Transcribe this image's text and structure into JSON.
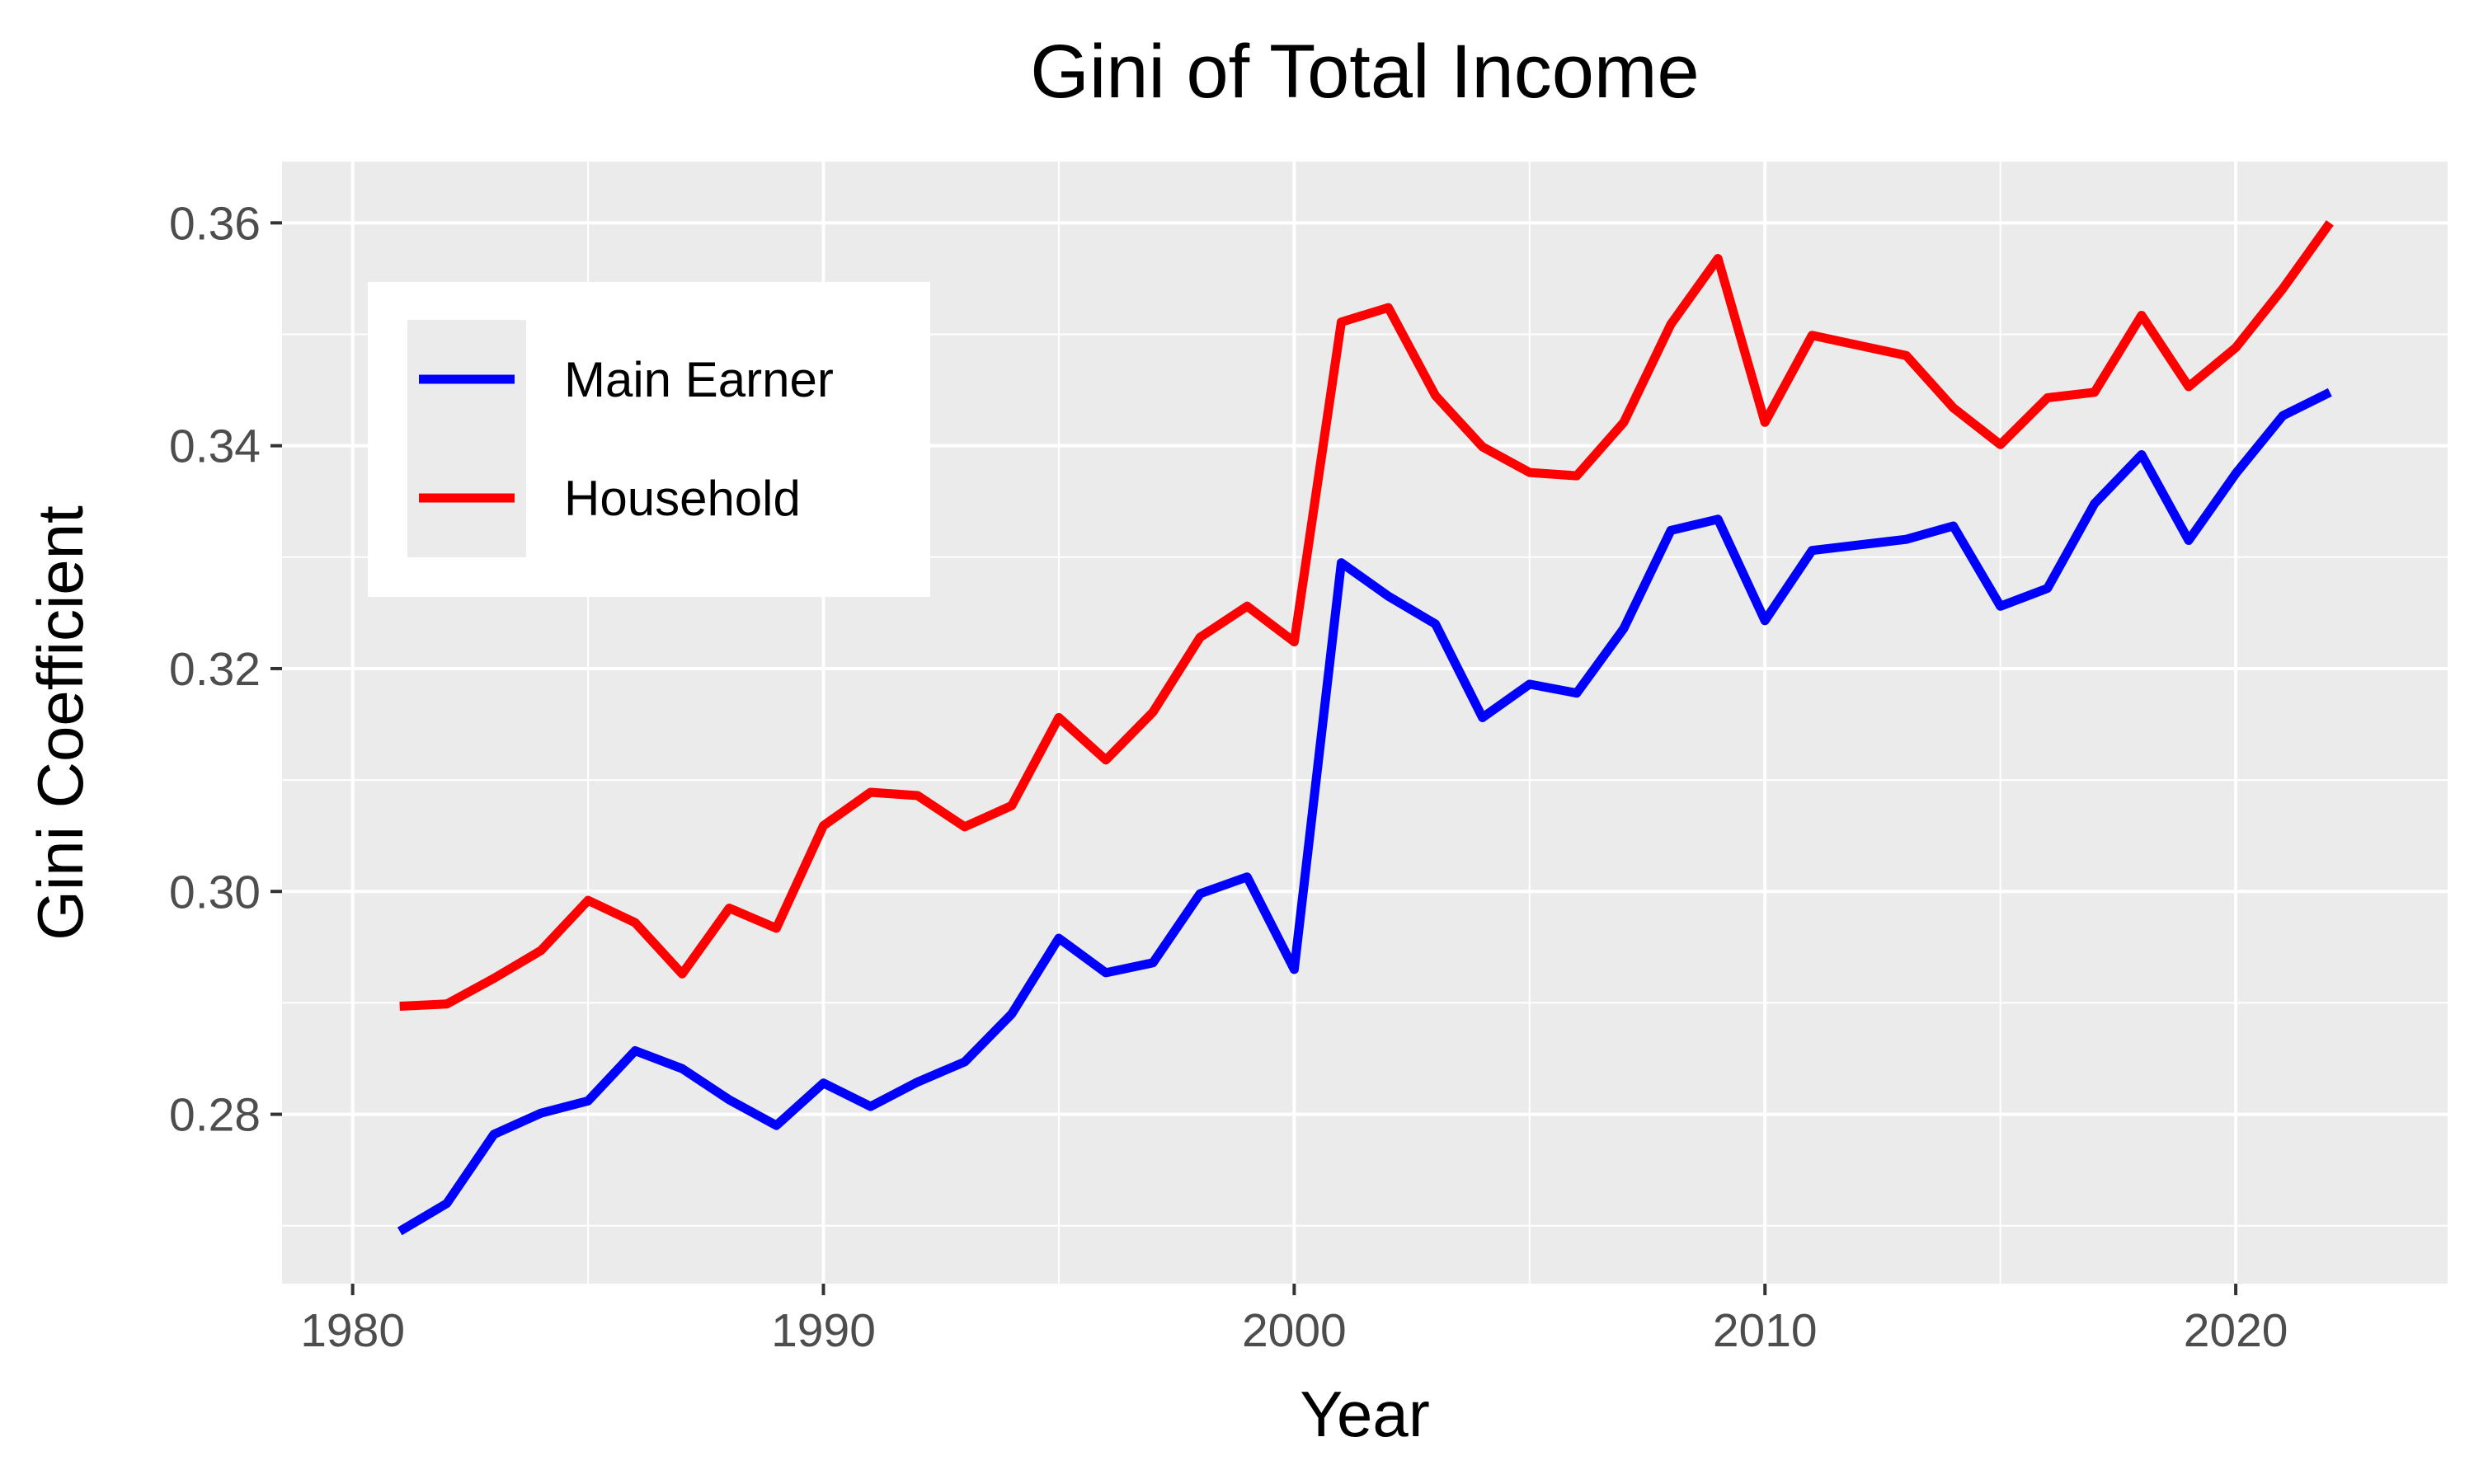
{
  "chart_data": {
    "type": "line",
    "title": "Gini of Total Income",
    "xlabel": "Year",
    "ylabel": "Gini Coefficient",
    "xlim": [
      1978.5,
      2024.5
    ],
    "ylim": [
      0.2648,
      0.3655
    ],
    "x_ticks": [
      1980,
      1990,
      2000,
      2010,
      2020
    ],
    "x_tick_labels": [
      "1980",
      "1990",
      "2000",
      "2010",
      "2020"
    ],
    "y_ticks": [
      0.28,
      0.3,
      0.32,
      0.34,
      0.36
    ],
    "y_tick_labels": [
      "0.28",
      "0.30",
      "0.32",
      "0.34",
      "0.36"
    ],
    "grid": true,
    "legend_position": "top-left",
    "x": [
      1981,
      1982,
      1983,
      1984,
      1985,
      1986,
      1987,
      1988,
      1989,
      1990,
      1991,
      1992,
      1993,
      1994,
      1995,
      1996,
      1997,
      1998,
      1999,
      2000,
      2001,
      2002,
      2003,
      2004,
      2005,
      2006,
      2007,
      2008,
      2009,
      2010,
      2011,
      2012,
      2013,
      2014,
      2015,
      2016,
      2017,
      2018,
      2019,
      2020,
      2021,
      2022
    ],
    "series": [
      {
        "name": "Main Earner",
        "color": "#0000ff",
        "values": [
          0.2695,
          0.272,
          0.2782,
          0.2801,
          0.2812,
          0.2857,
          0.2841,
          0.2813,
          0.279,
          0.2828,
          0.2807,
          0.2829,
          0.2847,
          0.289,
          0.2958,
          0.2927,
          0.2936,
          0.2998,
          0.3013,
          0.293,
          0.3295,
          0.3265,
          0.324,
          0.3156,
          0.3186,
          0.3178,
          0.3236,
          0.3324,
          0.3334,
          0.3243,
          0.3306,
          0.3311,
          0.3316,
          0.3328,
          0.3256,
          0.3272,
          0.3348,
          0.3392,
          0.3315,
          0.3375,
          0.3427,
          0.3448
        ]
      },
      {
        "name": "Household",
        "color": "#ff0000",
        "values": [
          0.2897,
          0.2899,
          0.2922,
          0.2947,
          0.2992,
          0.2972,
          0.2926,
          0.2985,
          0.2967,
          0.3059,
          0.3089,
          0.3086,
          0.3058,
          0.3077,
          0.3156,
          0.3118,
          0.3161,
          0.3228,
          0.3256,
          0.3224,
          0.3511,
          0.3524,
          0.3445,
          0.3399,
          0.3376,
          0.3373,
          0.3421,
          0.3509,
          0.3568,
          0.3421,
          0.3499,
          0.349,
          0.3481,
          0.3434,
          0.3401,
          0.3443,
          0.3448,
          0.3517,
          0.3453,
          0.3488,
          0.3541,
          0.36
        ]
      }
    ]
  }
}
